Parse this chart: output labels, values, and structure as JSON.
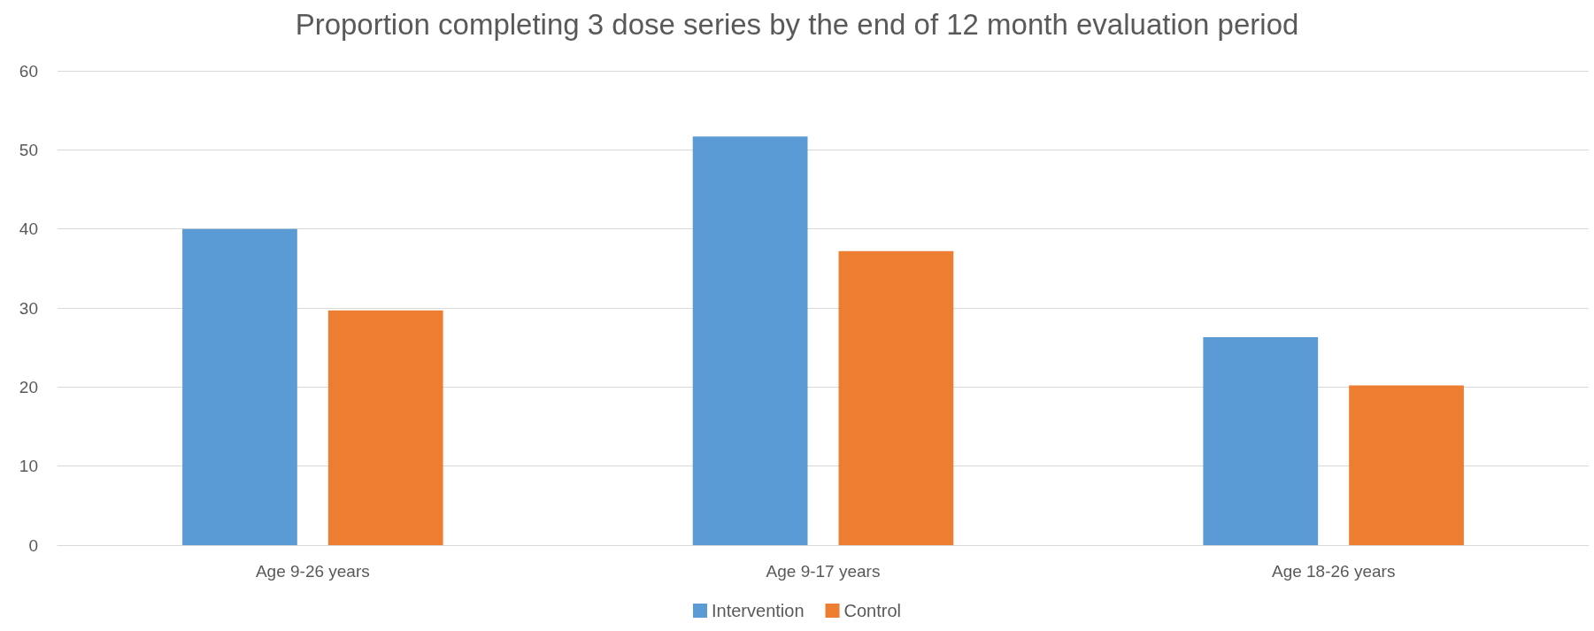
{
  "chart_data": {
    "type": "bar",
    "title": "Proportion completing 3 dose series by the end of 12 month evaluation period",
    "categories": [
      "Age 9-26 years",
      "Age 9-17 years",
      "Age 18-26 years"
    ],
    "series": [
      {
        "name": "Intervention",
        "color": "#5b9bd5",
        "values": [
          40,
          51.7,
          26.3
        ]
      },
      {
        "name": "Control",
        "color": "#ed7d31",
        "values": [
          29.7,
          37.2,
          20.2
        ]
      }
    ],
    "ylim": [
      0,
      60
    ],
    "yticks": [
      0,
      10,
      20,
      30,
      40,
      50,
      60
    ],
    "grid": "y",
    "legend": "bottom"
  }
}
